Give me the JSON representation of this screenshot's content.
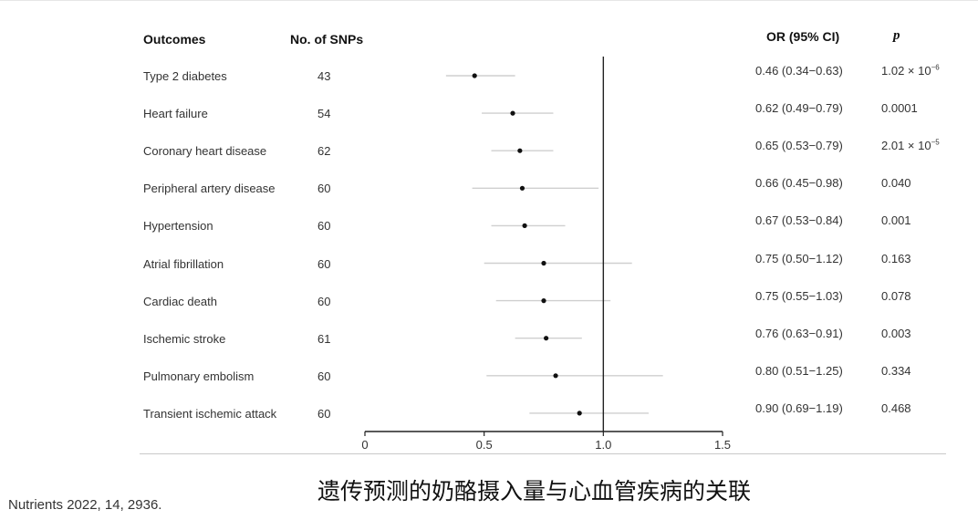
{
  "table": {
    "headers": {
      "outcomes": "Outcomes",
      "snps": "No. of SNPs",
      "or": "OR (95% CI)",
      "p": "p"
    },
    "rows": [
      {
        "outcome": "Type 2 diabetes",
        "snps": "43",
        "or_ci": "0.46 (0.34−0.63)",
        "p_base": "1.02 × 10",
        "p_exp": "−6"
      },
      {
        "outcome": "Heart failure",
        "snps": "54",
        "or_ci": "0.62 (0.49−0.79)",
        "p_base": "0.0001",
        "p_exp": ""
      },
      {
        "outcome": "Coronary heart disease",
        "snps": "62",
        "or_ci": "0.65 (0.53−0.79)",
        "p_base": "2.01 × 10",
        "p_exp": "−5"
      },
      {
        "outcome": "Peripheral artery disease",
        "snps": "60",
        "or_ci": "0.66 (0.45−0.98)",
        "p_base": "0.040",
        "p_exp": ""
      },
      {
        "outcome": "Hypertension",
        "snps": "60",
        "or_ci": "0.67 (0.53−0.84)",
        "p_base": "0.001",
        "p_exp": ""
      },
      {
        "outcome": "Atrial fibrillation",
        "snps": "60",
        "or_ci": "0.75 (0.50−1.12)",
        "p_base": "0.163",
        "p_exp": ""
      },
      {
        "outcome": "Cardiac death",
        "snps": "60",
        "or_ci": "0.75 (0.55−1.03)",
        "p_base": "0.078",
        "p_exp": ""
      },
      {
        "outcome": "Ischemic stroke",
        "snps": "61",
        "or_ci": "0.76 (0.63−0.91)",
        "p_base": "0.003",
        "p_exp": ""
      },
      {
        "outcome": "Pulmonary embolism",
        "snps": "60",
        "or_ci": "0.80 (0.51−1.25)",
        "p_base": "0.334",
        "p_exp": ""
      },
      {
        "outcome": "Transient ischemic attack",
        "snps": "60",
        "or_ci": "0.90 (0.69−1.19)",
        "p_base": "0.468",
        "p_exp": ""
      }
    ]
  },
  "chart_data": {
    "type": "scatter",
    "subtype": "forest",
    "categories": [
      "Type 2 diabetes",
      "Heart failure",
      "Coronary heart disease",
      "Peripheral artery disease",
      "Hypertension",
      "Atrial fibrillation",
      "Cardiac death",
      "Ischemic stroke",
      "Pulmonary embolism",
      "Transient ischemic attack"
    ],
    "or": [
      0.46,
      0.62,
      0.65,
      0.66,
      0.67,
      0.75,
      0.75,
      0.76,
      0.8,
      0.9
    ],
    "ci_low": [
      0.34,
      0.49,
      0.53,
      0.45,
      0.53,
      0.5,
      0.55,
      0.63,
      0.51,
      0.69
    ],
    "ci_high": [
      0.63,
      0.79,
      0.79,
      0.98,
      0.84,
      1.12,
      1.03,
      0.91,
      1.25,
      1.19
    ],
    "xlim": [
      0,
      1.5
    ],
    "xticks": [
      "0",
      "0.5",
      "1.0",
      "1.5"
    ],
    "reference_line": 1.0,
    "xlabel": "",
    "ylabel": "",
    "grid": false,
    "colors": {
      "point": "#111111",
      "ci_line": "#cfcfcf",
      "axis": "#222222",
      "reference": "#222222"
    }
  },
  "footer": {
    "citation": "Nutrients 2022, 14, 2936.",
    "caption": "遗传预测的奶酪摄入量与心血管疾病的关联"
  }
}
